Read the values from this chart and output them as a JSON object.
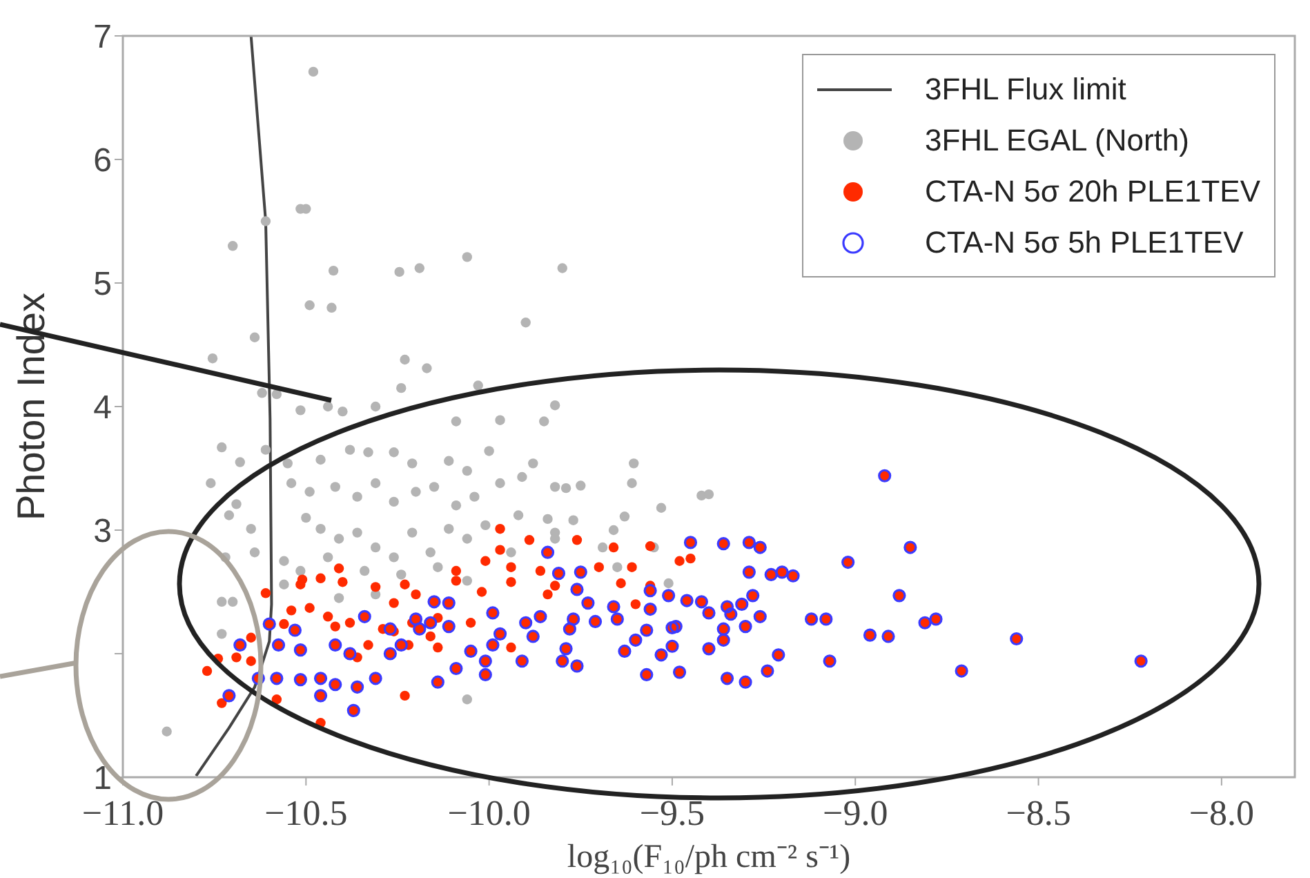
{
  "chart_data": {
    "type": "scatter",
    "xlabel": "log₁₀(F₁₀/ph cm⁻² s⁻¹)",
    "ylabel": "Photon Index",
    "xlim": [
      -11.0,
      -7.8
    ],
    "ylim": [
      1,
      7
    ],
    "xticks": [
      {
        "value": -11,
        "label": "−11.0"
      },
      {
        "value": -10.5,
        "label": "−10.5"
      },
      {
        "value": -10,
        "label": "−10.0"
      },
      {
        "value": -9.5,
        "label": "−9.5"
      },
      {
        "value": -9,
        "label": "−9.0"
      },
      {
        "value": -8.5,
        "label": "−8.5"
      },
      {
        "value": -8,
        "label": "−8.0"
      }
    ],
    "yticks": [
      1,
      {
        "value": 2,
        "label": null
      },
      3,
      4,
      5,
      6,
      7
    ],
    "grid": false,
    "legend": "top right",
    "marker": "circle",
    "series": [
      {
        "name": "3FHL Flux limit",
        "type": "line",
        "color": "#444444",
        "marker": "none",
        "x": [
          -10.65,
          -10.61,
          -10.598,
          -10.594,
          -10.6,
          -10.64,
          -10.71,
          -10.8
        ],
        "values": [
          7,
          5.5,
          3.9,
          2.4,
          2.1,
          1.73,
          1.4,
          1.01
        ]
      },
      {
        "name": "3FHL EGAL (North)",
        "type": "scatter",
        "color": "#b4b4b4",
        "x": [
          -10.48,
          -10.515,
          -10.5,
          -10.61,
          -10.7,
          -10.425,
          -10.245,
          -10.19,
          -10.06,
          -9.8,
          -10.49,
          -10.43,
          -9.9,
          -10.64,
          -10.755,
          -10.23,
          -10.17,
          -10.24,
          -10.03,
          -10.62,
          -10.58,
          -10.515,
          -10.44,
          -10.4,
          -10.31,
          -10.09,
          -9.97,
          -9.85,
          -9.82,
          -9.605,
          -9.61,
          -9.79,
          -9.75,
          -9.53,
          -9.42,
          -9.4,
          -9.77,
          -9.63,
          -9.66,
          -9.82,
          -9.69,
          -9.65,
          -9.51,
          -9.55,
          -10.73,
          -10.68,
          -10.61,
          -10.55,
          -10.46,
          -10.38,
          -10.33,
          -10.26,
          -10.21,
          -10.11,
          -10.06,
          -10.0,
          -9.88,
          -10.76,
          -10.69,
          -10.71,
          -10.65,
          -10.64,
          -10.72,
          -10.73,
          -10.7,
          -10.73,
          -10.88,
          -10.06,
          -10.54,
          -10.49,
          -10.42,
          -10.36,
          -10.31,
          -10.26,
          -10.2,
          -10.15,
          -10.09,
          -10.04,
          -9.97,
          -9.91,
          -9.82,
          -9.92,
          -9.84,
          -10.5,
          -10.46,
          -10.41,
          -10.36,
          -10.31,
          -10.26,
          -10.21,
          -10.16,
          -10.11,
          -10.06,
          -10.01,
          -10.56,
          -10.515,
          -10.44,
          -10.34,
          -10.24,
          -10.14,
          -9.94,
          -9.82,
          -10.31,
          -10.06,
          -10.41,
          -10.56
        ],
        "values": [
          6.71,
          5.6,
          5.6,
          5.5,
          5.3,
          5.1,
          5.09,
          5.12,
          5.21,
          5.12,
          4.82,
          4.8,
          4.68,
          4.56,
          4.39,
          4.38,
          4.31,
          4.15,
          4.17,
          4.11,
          4.1,
          3.97,
          4.0,
          3.96,
          4.0,
          3.88,
          3.89,
          3.88,
          4.01,
          3.54,
          3.38,
          3.34,
          3.36,
          3.18,
          3.28,
          3.29,
          3.08,
          3.11,
          3.0,
          2.98,
          2.86,
          2.7,
          2.57,
          2.86,
          3.67,
          3.55,
          3.65,
          3.54,
          3.57,
          3.65,
          3.63,
          3.63,
          3.54,
          3.56,
          3.48,
          3.64,
          3.54,
          3.38,
          3.21,
          3.12,
          3.01,
          2.82,
          2.78,
          2.42,
          2.42,
          2.16,
          1.37,
          1.63,
          3.38,
          3.31,
          3.35,
          3.27,
          3.38,
          3.23,
          3.31,
          3.35,
          3.2,
          3.27,
          3.38,
          3.43,
          3.35,
          3.12,
          3.09,
          3.1,
          3.01,
          2.93,
          2.98,
          2.86,
          2.78,
          2.98,
          2.82,
          3.01,
          2.93,
          3.04,
          2.75,
          2.67,
          2.78,
          2.67,
          2.64,
          2.7,
          2.82,
          2.93,
          2.48,
          2.59,
          2.45,
          2.56
        ]
      },
      {
        "name": "CTA-N 5σ 20h PLE1TEV",
        "type": "scatter",
        "color": "#ff2a00",
        "x": [
          -10.61,
          -10.51,
          -10.46,
          -10.41,
          -10.4,
          -10.54,
          -10.49,
          -10.44,
          -10.42,
          -10.56,
          -10.38,
          -10.29,
          -10.31,
          -10.23,
          -10.2,
          -10.26,
          -10.33,
          -10.36,
          -10.22,
          -10.26,
          -10.16,
          -10.14,
          -10.09,
          -10.09,
          -10.01,
          -9.97,
          -9.97,
          -9.94,
          -9.94,
          -9.89,
          -9.86,
          -9.84,
          -10.02,
          -10.05,
          -9.94,
          -10.14,
          -10.21,
          -10.74,
          -10.77,
          -10.73,
          -10.69,
          -10.65,
          -10.65,
          -10.58,
          -10.46,
          -10.23,
          -10.515,
          -9.76,
          -9.66,
          -9.7,
          -9.61,
          -9.56,
          -9.64,
          -9.56,
          -9.6,
          -9.48,
          -9.45,
          -9.82,
          -8.92,
          -8.85,
          -9.02,
          -8.88,
          -9.12,
          -9.08,
          -8.96,
          -8.91,
          -8.81,
          -8.78,
          -8.56,
          -8.71,
          -8.22,
          -9.07,
          -9.21,
          -9.24,
          -9.3,
          -9.35,
          -9.4,
          -9.48,
          -9.57,
          -9.53,
          -9.5,
          -9.63,
          -9.6,
          -9.57,
          -9.5,
          -9.56,
          -9.65,
          -9.66,
          -9.73,
          -9.71,
          -9.77,
          -9.78,
          -9.79,
          -9.8,
          -9.76,
          -9.76,
          -9.75,
          -9.81,
          -9.45,
          -9.36,
          -9.29,
          -9.26,
          -9.29,
          -9.23,
          -9.2,
          -9.17,
          -9.28,
          -9.31,
          -9.35,
          -9.34,
          -9.36,
          -9.3,
          -9.26,
          -9.36,
          -9.46,
          -9.42,
          -9.4,
          -9.51,
          -9.49,
          -9.56,
          -9.84,
          -9.86,
          -9.9,
          -9.88,
          -9.99,
          -9.97,
          -10.01,
          -10.01,
          -10.09,
          -10.14,
          -10.05,
          -10.11,
          -10.16,
          -10.19,
          -10.15,
          -10.11,
          -10.24,
          -10.27,
          -10.31,
          -10.36,
          -10.37,
          -10.38,
          -10.34,
          -10.42,
          -10.46,
          -10.46,
          -10.42,
          -10.515,
          -10.515,
          -10.575,
          -10.58,
          -10.63,
          -10.68,
          -10.71,
          -10.6,
          -10.53,
          -10.27,
          -10.2,
          -9.91,
          -9.99
        ],
        "values": [
          2.49,
          2.6,
          2.61,
          2.69,
          2.58,
          2.35,
          2.37,
          2.3,
          2.22,
          2.24,
          2.25,
          2.2,
          2.54,
          2.56,
          2.48,
          2.41,
          2.07,
          1.97,
          2.07,
          2.18,
          2.14,
          2.05,
          2.67,
          2.59,
          2.75,
          3.01,
          2.84,
          2.7,
          2.58,
          2.92,
          2.67,
          2.48,
          2.5,
          2.25,
          2.05,
          2.29,
          2.25,
          1.96,
          1.86,
          1.6,
          1.97,
          1.94,
          2.13,
          1.63,
          1.44,
          1.66,
          2.56,
          2.92,
          2.86,
          2.7,
          2.7,
          2.87,
          2.57,
          2.55,
          2.4,
          2.75,
          2.77,
          2.55,
          3.44,
          2.86,
          2.74,
          2.47,
          2.28,
          2.28,
          2.15,
          2.14,
          2.25,
          2.28,
          2.12,
          1.86,
          1.94,
          1.94,
          1.99,
          1.86,
          1.77,
          1.8,
          2.04,
          1.85,
          1.83,
          1.99,
          2.06,
          2.02,
          2.11,
          2.19,
          2.21,
          2.36,
          2.28,
          2.38,
          2.41,
          2.26,
          2.28,
          2.2,
          2.04,
          1.94,
          1.9,
          2.52,
          2.66,
          2.65,
          2.9,
          2.89,
          2.9,
          2.86,
          2.66,
          2.64,
          2.66,
          2.63,
          2.47,
          2.4,
          2.38,
          2.32,
          2.2,
          2.22,
          2.3,
          2.11,
          2.43,
          2.42,
          2.33,
          2.47,
          2.22,
          2.51,
          2.82,
          2.3,
          2.25,
          2.14,
          2.33,
          2.16,
          1.94,
          1.83,
          1.88,
          1.77,
          2.02,
          2.22,
          2.25,
          2.2,
          2.42,
          2.41,
          2.07,
          2.0,
          1.8,
          1.73,
          1.54,
          2.0,
          2.3,
          2.07,
          1.8,
          1.66,
          1.75,
          1.79,
          2.03,
          2.07,
          1.8,
          1.8,
          2.07,
          1.66,
          2.24,
          2.19,
          2.2,
          2.28,
          1.94,
          2.07
        ]
      },
      {
        "name": "CTA-N 5σ 5h PLE1TEV",
        "type": "scatter",
        "color": "#3a3aff",
        "x": [
          -8.92,
          -8.85,
          -9.02,
          -8.88,
          -9.12,
          -9.08,
          -8.96,
          -8.91,
          -8.81,
          -8.78,
          -8.56,
          -8.71,
          -8.22,
          -9.07,
          -9.21,
          -9.24,
          -9.3,
          -9.35,
          -9.4,
          -9.48,
          -9.57,
          -9.53,
          -9.5,
          -9.63,
          -9.6,
          -9.57,
          -9.5,
          -9.56,
          -9.65,
          -9.66,
          -9.73,
          -9.71,
          -9.77,
          -9.78,
          -9.79,
          -9.8,
          -9.76,
          -9.76,
          -9.75,
          -9.81,
          -9.45,
          -9.36,
          -9.29,
          -9.26,
          -9.29,
          -9.23,
          -9.2,
          -9.17,
          -9.28,
          -9.31,
          -9.35,
          -9.34,
          -9.36,
          -9.3,
          -9.26,
          -9.36,
          -9.46,
          -9.42,
          -9.4,
          -9.51,
          -9.49,
          -9.56,
          -9.84,
          -9.86,
          -9.9,
          -9.88,
          -9.99,
          -9.97,
          -10.01,
          -10.01,
          -10.09,
          -10.14,
          -10.05,
          -10.11,
          -10.16,
          -10.19,
          -10.15,
          -10.11,
          -10.24,
          -10.27,
          -10.31,
          -10.36,
          -10.37,
          -10.38,
          -10.34,
          -10.42,
          -10.46,
          -10.46,
          -10.42,
          -10.515,
          -10.515,
          -10.575,
          -10.58,
          -10.63,
          -10.68,
          -10.71,
          -10.6,
          -10.53,
          -10.27,
          -10.2,
          -9.91,
          -9.99
        ],
        "values": [
          3.44,
          2.86,
          2.74,
          2.47,
          2.28,
          2.28,
          2.15,
          2.14,
          2.25,
          2.28,
          2.12,
          1.86,
          1.94,
          1.94,
          1.99,
          1.86,
          1.77,
          1.8,
          2.04,
          1.85,
          1.83,
          1.99,
          2.06,
          2.02,
          2.11,
          2.19,
          2.21,
          2.36,
          2.28,
          2.38,
          2.41,
          2.26,
          2.28,
          2.2,
          2.04,
          1.94,
          1.9,
          2.52,
          2.66,
          2.65,
          2.9,
          2.89,
          2.9,
          2.86,
          2.66,
          2.64,
          2.66,
          2.63,
          2.47,
          2.4,
          2.38,
          2.32,
          2.2,
          2.22,
          2.3,
          2.11,
          2.43,
          2.42,
          2.33,
          2.47,
          2.22,
          2.51,
          2.82,
          2.3,
          2.25,
          2.14,
          2.33,
          2.16,
          1.94,
          1.83,
          1.88,
          1.77,
          2.02,
          2.22,
          2.25,
          2.2,
          2.42,
          2.41,
          2.07,
          2.0,
          1.8,
          1.73,
          1.54,
          2.0,
          2.3,
          2.07,
          1.8,
          1.66,
          1.75,
          1.79,
          2.03,
          2.07,
          1.8,
          1.8,
          2.07,
          1.66,
          2.24,
          2.19,
          2.2,
          2.28,
          1.94,
          2.07
        ]
      }
    ]
  }
}
